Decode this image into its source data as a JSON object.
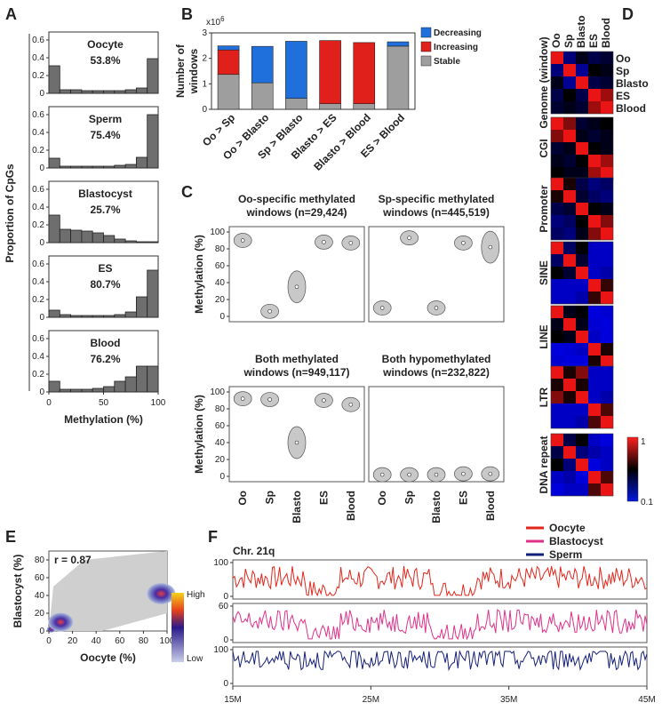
{
  "panel_labels": {
    "a": "A",
    "b": "B",
    "c": "C",
    "d": "D",
    "e": "E",
    "f": "F"
  },
  "colors": {
    "decreasing": "#1f6fdc",
    "increasing": "#e0201a",
    "stable": "#9e9e9e",
    "oocyte": "#e3261c",
    "blastocyst": "#e0318a",
    "sperm": "#15207a",
    "bar": "#6e6e6e"
  },
  "chart_data": [
    {
      "id": "A",
      "type": "bar",
      "ylabel": "Proportion of CpGs",
      "xlabel": "Methylation (%)",
      "xticks": [
        "0",
        "50",
        "100"
      ],
      "yticks": [
        "0",
        "0.2",
        "0.4",
        "0.6"
      ],
      "ylim": [
        0,
        0.65
      ],
      "bins": 10,
      "panels": [
        {
          "name": "Oocyte",
          "pct": "53.8%",
          "values": [
            0.31,
            0.04,
            0.04,
            0.03,
            0.03,
            0.03,
            0.03,
            0.04,
            0.06,
            0.39
          ]
        },
        {
          "name": "Sperm",
          "pct": "75.4%",
          "values": [
            0.11,
            0.02,
            0.02,
            0.02,
            0.02,
            0.02,
            0.03,
            0.04,
            0.12,
            0.6
          ]
        },
        {
          "name": "Blastocyst",
          "pct": "25.7%",
          "values": [
            0.31,
            0.15,
            0.14,
            0.13,
            0.11,
            0.08,
            0.04,
            0.02,
            0.01,
            0.01
          ]
        },
        {
          "name": "ES",
          "pct": "80.7%",
          "values": [
            0.08,
            0.03,
            0.02,
            0.02,
            0.02,
            0.02,
            0.03,
            0.06,
            0.23,
            0.53
          ]
        },
        {
          "name": "Blood",
          "pct": "76.2%",
          "values": [
            0.12,
            0.03,
            0.03,
            0.03,
            0.04,
            0.06,
            0.12,
            0.17,
            0.29,
            0.29
          ]
        }
      ]
    },
    {
      "id": "B",
      "type": "bar",
      "scale_label": "x10",
      "scale_exp": "6",
      "ylabel_lines": [
        "Number of",
        "windows"
      ],
      "yticks": [
        "0",
        "1",
        "2",
        "3"
      ],
      "ylim": [
        0,
        3
      ],
      "categories": [
        "Oo > Sp",
        "Oo > Blasto",
        "Sp > Blasto",
        "Blasto > ES",
        "Blasto > Blood",
        "ES > Blood"
      ],
      "series": [
        {
          "name": "Stable",
          "values": [
            1.37,
            1.04,
            0.43,
            0.22,
            0.22,
            2.48
          ]
        },
        {
          "name": "Increasing",
          "values": [
            0.96,
            0,
            0,
            2.48,
            2.4,
            0
          ]
        },
        {
          "name": "Decreasing",
          "values": [
            0.16,
            1.43,
            2.24,
            0,
            0,
            0.17
          ]
        }
      ],
      "legend": [
        "Decreasing",
        "Increasing",
        "Stable"
      ]
    },
    {
      "id": "C",
      "type": "violin",
      "ylabel": "Methylation (%)",
      "yticks": [
        "0",
        "20",
        "40",
        "60",
        "80",
        "100"
      ],
      "ylim": [
        0,
        100
      ],
      "categories": [
        "Oo",
        "Sp",
        "Blasto",
        "ES",
        "Blood"
      ],
      "panels": [
        {
          "title": [
            "Oo-specific methylated",
            "windows (n=29,424)"
          ],
          "medians": [
            90,
            6,
            35,
            88,
            87
          ]
        },
        {
          "title": [
            "Sp-specific methylated",
            "windows (n=445,519)"
          ],
          "medians": [
            10,
            93,
            10,
            87,
            82
          ]
        },
        {
          "title": [
            "Both methylated",
            "windows (n=949,117)"
          ],
          "medians": [
            92,
            91,
            40,
            90,
            85
          ]
        },
        {
          "title": [
            "Both hypomethylated",
            "windows (n=232,822)"
          ],
          "medians": [
            2,
            2,
            2,
            3,
            3
          ]
        }
      ]
    },
    {
      "id": "D",
      "type": "heatmap",
      "columns": [
        "Oo",
        "Sp",
        "Blasto",
        "ES",
        "Blood"
      ],
      "row_labels": [
        "Oo",
        "Sp",
        "Blasto",
        "ES",
        "Blood"
      ],
      "groups": [
        "Genome (window)",
        "CGI",
        "Promoter",
        "SINE",
        "LINE",
        "LTR",
        "DNA repeat"
      ],
      "matrices": [
        [
          [
            1,
            0.3,
            0.5,
            0.4,
            0.45
          ],
          [
            0.3,
            1,
            0.25,
            0.55,
            0.5
          ],
          [
            0.5,
            0.25,
            1,
            0.4,
            0.45
          ],
          [
            0.4,
            0.55,
            0.4,
            1,
            0.85
          ],
          [
            0.45,
            0.5,
            0.45,
            0.85,
            1
          ]
        ],
        [
          [
            1,
            0.8,
            0.45,
            0.5,
            0.55
          ],
          [
            0.8,
            1,
            0.5,
            0.45,
            0.5
          ],
          [
            0.45,
            0.5,
            1,
            0.55,
            0.5
          ],
          [
            0.5,
            0.45,
            0.55,
            1,
            0.85
          ],
          [
            0.55,
            0.5,
            0.5,
            0.85,
            1
          ]
        ],
        [
          [
            1,
            0.6,
            0.4,
            0.3,
            0.35
          ],
          [
            0.6,
            1,
            0.45,
            0.35,
            0.3
          ],
          [
            0.4,
            0.45,
            1,
            0.55,
            0.5
          ],
          [
            0.3,
            0.35,
            0.55,
            1,
            0.8
          ],
          [
            0.35,
            0.3,
            0.5,
            0.8,
            1
          ]
        ],
        [
          [
            1,
            0.35,
            0.55,
            0.15,
            0.15
          ],
          [
            0.35,
            1,
            0.45,
            0.15,
            0.15
          ],
          [
            0.55,
            0.45,
            1,
            0.15,
            0.2
          ],
          [
            0.15,
            0.15,
            0.15,
            1,
            0.65
          ],
          [
            0.15,
            0.15,
            0.2,
            0.65,
            1
          ]
        ],
        [
          [
            1,
            0.5,
            0.55,
            0.1,
            0.12
          ],
          [
            0.5,
            1,
            0.5,
            0.12,
            0.1
          ],
          [
            0.55,
            0.5,
            1,
            0.15,
            0.1
          ],
          [
            0.1,
            0.12,
            0.15,
            1,
            0.6
          ],
          [
            0.12,
            0.1,
            0.1,
            0.6,
            1
          ]
        ],
        [
          [
            1,
            0.6,
            0.8,
            0.15,
            0.15
          ],
          [
            0.6,
            1,
            0.6,
            0.15,
            0.15
          ],
          [
            0.8,
            0.6,
            1,
            0.15,
            0.2
          ],
          [
            0.15,
            0.15,
            0.15,
            1,
            0.7
          ],
          [
            0.15,
            0.15,
            0.2,
            0.7,
            1
          ]
        ],
        [
          [
            1,
            0.4,
            0.55,
            0.15,
            0.1
          ],
          [
            0.4,
            1,
            0.3,
            0.2,
            0.15
          ],
          [
            0.55,
            0.3,
            1,
            0.1,
            0.15
          ],
          [
            0.15,
            0.2,
            0.1,
            1,
            0.7
          ],
          [
            0.1,
            0.15,
            0.15,
            0.7,
            1
          ]
        ]
      ],
      "scale_max": "1",
      "scale_min": "0.1"
    },
    {
      "id": "E",
      "type": "scatter",
      "annotation": "r = 0.87",
      "xlabel": "Oocyte (%)",
      "ylabel": "Blastocyst (%)",
      "xticks": [
        "0",
        "20",
        "40",
        "60",
        "80",
        "100"
      ],
      "yticks": [
        "0",
        "20",
        "40",
        "60",
        "80"
      ],
      "xlim": [
        0,
        100
      ],
      "ylim": [
        0,
        90
      ],
      "density_peaks": [
        {
          "x": 2,
          "y": 2
        },
        {
          "x": 10,
          "y": 10
        },
        {
          "x": 95,
          "y": 42
        }
      ],
      "colorbar": {
        "high": "High",
        "low": "Low"
      }
    },
    {
      "id": "F",
      "type": "line",
      "title": "Chr. 21q",
      "xticks": [
        "15M",
        "25M",
        "35M",
        "45M"
      ],
      "xlim": [
        15,
        45
      ],
      "tracks": [
        {
          "name": "Oocyte",
          "yticks": [
            "0",
            "100"
          ],
          "ylim": [
            0,
            100
          ]
        },
        {
          "name": "Blastocyst",
          "yticks": [
            "0",
            "60"
          ],
          "ylim": [
            0,
            60
          ]
        },
        {
          "name": "Sperm",
          "yticks": [
            "0",
            "100"
          ],
          "ylim": [
            0,
            100
          ]
        }
      ]
    }
  ]
}
